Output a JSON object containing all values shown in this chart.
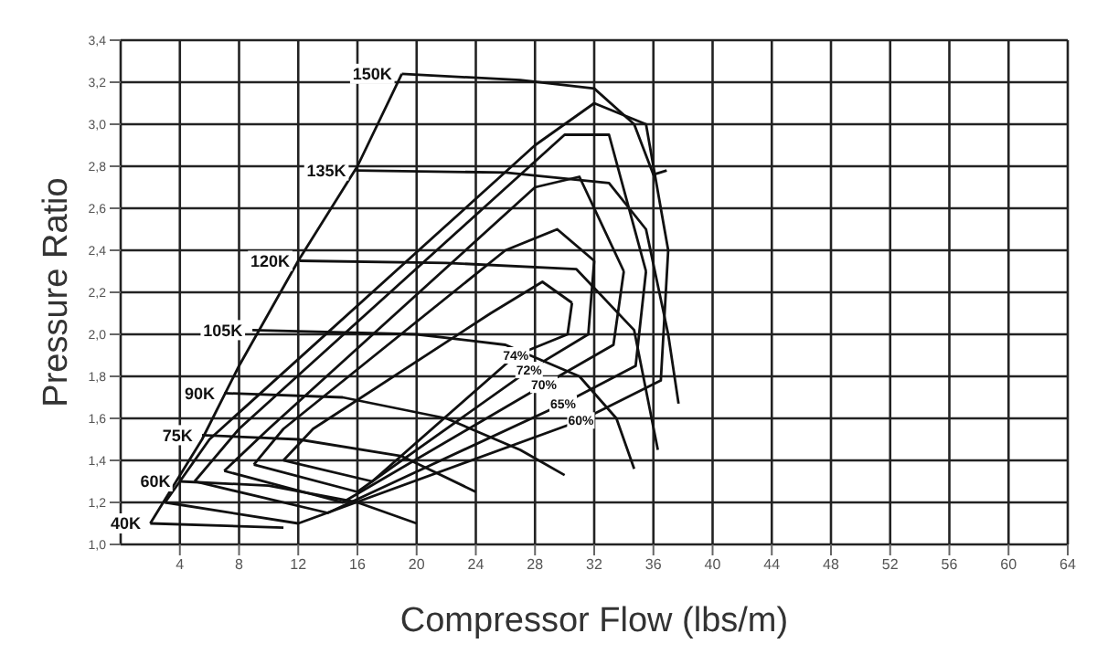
{
  "chart_data": {
    "type": "line",
    "xlabel": "Compressor Flow (lbs/m)",
    "ylabel": "Pressure Ratio",
    "xlim": [
      0,
      64
    ],
    "xticks": [
      4,
      8,
      12,
      16,
      20,
      24,
      28,
      32,
      36,
      40,
      44,
      48,
      52,
      56,
      60,
      64
    ],
    "ylim": [
      1.0,
      3.4
    ],
    "yticks": [
      {
        "value": 1.0,
        "label": "1,0"
      },
      {
        "value": 1.2,
        "label": "1,2"
      },
      {
        "value": 1.4,
        "label": "1,4"
      },
      {
        "value": 1.6,
        "label": "1,6"
      },
      {
        "value": 1.8,
        "label": "1,8"
      },
      {
        "value": 2.0,
        "label": "2,0"
      },
      {
        "value": 2.2,
        "label": "2,2"
      },
      {
        "value": 2.4,
        "label": "2,4"
      },
      {
        "value": 2.6,
        "label": "2,6"
      },
      {
        "value": 2.8,
        "label": "2,8"
      },
      {
        "value": 3.0,
        "label": "3,0"
      },
      {
        "value": 3.2,
        "label": "3,2"
      },
      {
        "value": 3.4,
        "label": "3,4"
      }
    ],
    "grid": true,
    "legend": false,
    "marker": "none",
    "line_style": "solid",
    "series": [
      {
        "color": "#111111",
        "x": [
          2,
          5.5,
          8,
          12,
          16,
          19
        ],
        "values": [
          1.1,
          1.5,
          1.85,
          2.35,
          2.8,
          3.24
        ]
      },
      {
        "name": "150K",
        "color": "#111111",
        "x": [
          19,
          27,
          32,
          34.7,
          36,
          36.9
        ],
        "values": [
          3.24,
          3.21,
          3.17,
          3.0,
          2.76,
          2.78
        ]
      },
      {
        "name": "135K",
        "color": "#111111",
        "x": [
          15.9,
          26,
          33,
          35.5,
          37,
          37.7
        ],
        "values": [
          2.78,
          2.77,
          2.72,
          2.5,
          2.0,
          1.67
        ]
      },
      {
        "name": "120K",
        "color": "#111111",
        "x": [
          12.1,
          22,
          30.8,
          34.7,
          36.3
        ],
        "values": [
          2.35,
          2.34,
          2.31,
          2.02,
          1.45
        ]
      },
      {
        "name": "105K",
        "color": "#111111",
        "x": [
          8.9,
          20,
          26,
          31,
          33.5,
          34.7
        ],
        "values": [
          2.02,
          2.0,
          1.95,
          1.8,
          1.6,
          1.36
        ]
      },
      {
        "name": "90K",
        "color": "#111111",
        "x": [
          7,
          15,
          22,
          27,
          30
        ],
        "values": [
          1.72,
          1.7,
          1.6,
          1.45,
          1.33
        ]
      },
      {
        "name": "75K",
        "color": "#111111",
        "x": [
          5.5,
          12,
          19,
          24
        ],
        "values": [
          1.52,
          1.5,
          1.42,
          1.25
        ]
      },
      {
        "name": "60K",
        "color": "#111111",
        "x": [
          4,
          10,
          16,
          20
        ],
        "values": [
          1.3,
          1.28,
          1.2,
          1.1
        ]
      },
      {
        "name": "40K",
        "color": "#111111",
        "x": [
          2,
          11
        ],
        "values": [
          1.1,
          1.08
        ]
      },
      {
        "name": "60%",
        "color": "#111111",
        "x": [
          3,
          12,
          31.1,
          36.5,
          37
        ],
        "values": [
          1.2,
          1.1,
          1.59,
          1.78,
          2.4
        ]
      },
      {
        "color": "#111111",
        "x": [
          3,
          6,
          28,
          32,
          35.5,
          37
        ],
        "values": [
          1.2,
          1.5,
          2.9,
          3.1,
          3.0,
          2.4
        ]
      },
      {
        "name": "65%",
        "color": "#111111",
        "x": [
          5,
          14,
          29.9,
          34.8,
          35.5
        ],
        "values": [
          1.3,
          1.15,
          1.67,
          1.85,
          2.3
        ]
      },
      {
        "color": "#111111",
        "x": [
          5,
          8,
          30,
          33,
          35.5
        ],
        "values": [
          1.3,
          1.55,
          2.95,
          2.95,
          2.3
        ]
      },
      {
        "name": "70%",
        "color": "#111111",
        "x": [
          7,
          15,
          28.6,
          33.3,
          34
        ],
        "values": [
          1.35,
          1.2,
          1.76,
          1.95,
          2.3
        ]
      },
      {
        "color": "#111111",
        "x": [
          7,
          10,
          28,
          31,
          34
        ],
        "values": [
          1.35,
          1.55,
          2.7,
          2.75,
          2.3
        ]
      },
      {
        "name": "72%",
        "color": "#111111",
        "x": [
          9,
          16,
          27.6,
          31.6,
          32
        ],
        "values": [
          1.38,
          1.25,
          1.83,
          2.0,
          2.35
        ]
      },
      {
        "color": "#111111",
        "x": [
          9,
          11,
          26,
          29.5,
          32
        ],
        "values": [
          1.38,
          1.55,
          2.4,
          2.5,
          2.35
        ]
      },
      {
        "name": "74%",
        "color": "#111111",
        "x": [
          11,
          17,
          26.7,
          30.2,
          30.5
        ],
        "values": [
          1.4,
          1.3,
          1.9,
          2.0,
          2.15
        ]
      },
      {
        "color": "#111111",
        "x": [
          11,
          13,
          25,
          28.5,
          30.5
        ],
        "values": [
          1.4,
          1.55,
          2.1,
          2.25,
          2.15
        ]
      }
    ]
  }
}
